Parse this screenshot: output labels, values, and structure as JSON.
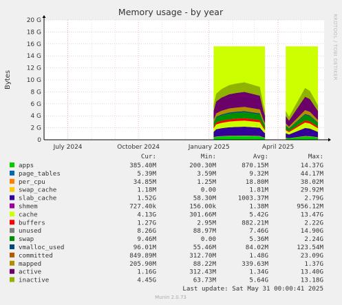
{
  "chart_data": {
    "type": "area",
    "title": "Memory usage - by year",
    "ylabel": "Bytes",
    "xlabel": "",
    "y_unit": "G",
    "ylim": [
      0,
      20
    ],
    "yticks": [
      0,
      2,
      4,
      6,
      8,
      10,
      12,
      14,
      16,
      18,
      20
    ],
    "ytick_labels": [
      "0",
      "2 G",
      "4 G",
      "6 G",
      "8 G",
      "10 G",
      "12 G",
      "14 G",
      "16 G",
      "18 G",
      "20 G"
    ],
    "x_range": [
      "2024-05-31",
      "2025-05-31"
    ],
    "xticks": [
      {
        "date": "2024-07-01",
        "label": "July 2024"
      },
      {
        "date": "2024-10-01",
        "label": "October 2024"
      },
      {
        "date": "2025-01-01",
        "label": "January 2025"
      },
      {
        "date": "2025-04-01",
        "label": "April 2025"
      }
    ],
    "grid": true,
    "legend_position": "bottom",
    "segments": [
      {
        "start": "2025-01-07",
        "end": "2025-03-15"
      },
      {
        "start": "2025-04-11",
        "end": "2025-05-23"
      }
    ],
    "segment_profiles": [
      {
        "x": [
          0,
          0.05,
          0.15,
          0.3,
          0.45,
          0.6,
          0.75,
          0.9,
          0.97,
          1.0
        ],
        "stack_total": [
          6.0,
          8.0,
          8.8,
          9.5,
          9.8,
          10.0,
          9.6,
          9.2,
          6.0,
          5.0
        ]
      },
      {
        "x": [
          0,
          0.1,
          0.25,
          0.45,
          0.6,
          0.75,
          0.9,
          1.0
        ],
        "stack_total": [
          5.0,
          4.0,
          5.5,
          7.5,
          9.0,
          8.5,
          7.0,
          6.0
        ]
      }
    ],
    "unused_top": 15.6,
    "series": [
      {
        "name": "apps",
        "color": "#00cc00",
        "share": 0.06
      },
      {
        "name": "page_tables",
        "color": "#0066b3",
        "share": 0.003
      },
      {
        "name": "per_cpu",
        "color": "#ff8000",
        "share": 0.003
      },
      {
        "name": "swap_cache",
        "color": "#ffcc00",
        "share": 0.003
      },
      {
        "name": "slab_cache",
        "color": "#330099",
        "share": 0.15
      },
      {
        "name": "shmem",
        "color": "#990099",
        "share": 0.0
      },
      {
        "name": "cache",
        "color": "#ccff00",
        "share": 0.1
      },
      {
        "name": "buffers",
        "color": "#ff0000",
        "share": 0.04
      },
      {
        "name": "unused",
        "color": "#808080",
        "share": 0.0
      },
      {
        "name": "swap",
        "color": "#008f00",
        "share": 0.1
      },
      {
        "name": "vmalloc_used",
        "color": "#00487d",
        "share": 0.02
      },
      {
        "name": "committed",
        "color": "#b35a00",
        "share": 0.0
      },
      {
        "name": "mapped",
        "color": "#b38f00",
        "share": 0.07
      },
      {
        "name": "active",
        "color": "#6b006b",
        "share": 0.25
      },
      {
        "name": "inactive",
        "color": "#8fb300",
        "share": 0.16
      }
    ],
    "legend": {
      "headers": [
        "Cur:",
        "Min:",
        "Avg:",
        "Max:"
      ],
      "rows": [
        {
          "name": "apps",
          "color": "#00cc00",
          "cur": "385.40M",
          "min": "200.30M",
          "avg": "870.15M",
          "max": "14.37G"
        },
        {
          "name": "page_tables",
          "color": "#0066b3",
          "cur": "5.39M",
          "min": "3.59M",
          "avg": "9.32M",
          "max": "44.17M"
        },
        {
          "name": "per_cpu",
          "color": "#ff8000",
          "cur": "34.85M",
          "min": "1.25M",
          "avg": "18.80M",
          "max": "38.02M"
        },
        {
          "name": "swap_cache",
          "color": "#ffcc00",
          "cur": "1.18M",
          "min": "0.00",
          "avg": "1.81M",
          "max": "29.92M"
        },
        {
          "name": "slab_cache",
          "color": "#330099",
          "cur": "1.52G",
          "min": "58.30M",
          "avg": "1003.37M",
          "max": "2.79G"
        },
        {
          "name": "shmem",
          "color": "#990099",
          "cur": "727.40k",
          "min": "156.00k",
          "avg": "1.38M",
          "max": "956.12M"
        },
        {
          "name": "cache",
          "color": "#ccff00",
          "cur": "4.13G",
          "min": "301.66M",
          "avg": "5.42G",
          "max": "13.47G"
        },
        {
          "name": "buffers",
          "color": "#ff0000",
          "cur": "1.27G",
          "min": "2.95M",
          "avg": "882.21M",
          "max": "2.22G"
        },
        {
          "name": "unused",
          "color": "#808080",
          "cur": "8.26G",
          "min": "88.97M",
          "avg": "7.46G",
          "max": "14.90G"
        },
        {
          "name": "swap",
          "color": "#008f00",
          "cur": "9.46M",
          "min": "0.00",
          "avg": "5.36M",
          "max": "2.24G"
        },
        {
          "name": "vmalloc_used",
          "color": "#00487d",
          "cur": "96.01M",
          "min": "55.46M",
          "avg": "84.02M",
          "max": "123.54M"
        },
        {
          "name": "committed",
          "color": "#b35a00",
          "cur": "849.89M",
          "min": "312.70M",
          "avg": "1.48G",
          "max": "23.09G"
        },
        {
          "name": "mapped",
          "color": "#b38f00",
          "cur": "205.90M",
          "min": "88.22M",
          "avg": "339.63M",
          "max": "1.37G"
        },
        {
          "name": "active",
          "color": "#6b006b",
          "cur": "1.16G",
          "min": "312.43M",
          "avg": "1.34G",
          "max": "13.40G"
        },
        {
          "name": "inactive",
          "color": "#8fb300",
          "cur": "4.45G",
          "min": "63.73M",
          "avg": "5.64G",
          "max": "13.18G"
        }
      ]
    },
    "last_update": "Last update: Sat May 31 00:00:41 2025",
    "side_label": "RRDTOOL / TOBI OETIKER",
    "footer": "Munin 2.0.73"
  }
}
